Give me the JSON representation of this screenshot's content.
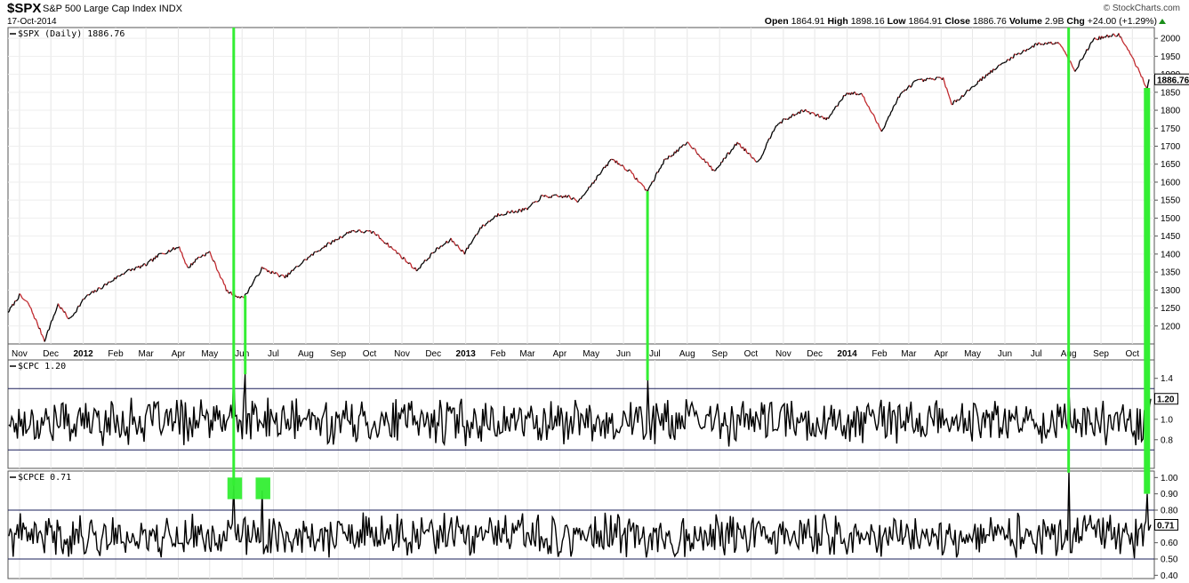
{
  "header": {
    "ticker": "$SPX",
    "name": "S&P 500 Large Cap Index",
    "exchange": "INDX",
    "date": "17-Oct-2014",
    "brand": "© StockCharts.com",
    "quote": {
      "open_label": "Open",
      "open": "1864.91",
      "high_label": "High",
      "high": "1898.16",
      "low_label": "Low",
      "low": "1864.91",
      "close_label": "Close",
      "close": "1886.76",
      "volume_label": "Volume",
      "volume": "2.9B",
      "chg_label": "Chg",
      "chg": "+24.00 (+1.29%)"
    }
  },
  "chart_data": [
    {
      "type": "line",
      "label": "$SPX (Daily) 1886.76",
      "last_value_label": "1886.76",
      "ylim": [
        1150,
        2030
      ],
      "yticks": [
        1200,
        1250,
        1300,
        1350,
        1400,
        1450,
        1500,
        1550,
        1600,
        1650,
        1700,
        1750,
        1800,
        1850,
        1900,
        1950,
        2000
      ],
      "line_color_up": "#000000",
      "line_color_down": "#c0282d",
      "x": [
        "2011-10-21",
        "2011-11-01",
        "2011-11-10",
        "2011-11-25",
        "2011-12-08",
        "2011-12-19",
        "2012-01-03",
        "2012-01-20",
        "2012-02-10",
        "2012-03-01",
        "2012-03-15",
        "2012-04-02",
        "2012-04-10",
        "2012-04-20",
        "2012-05-01",
        "2012-05-18",
        "2012-06-01",
        "2012-06-04",
        "2012-06-20",
        "2012-07-12",
        "2012-08-01",
        "2012-08-17",
        "2012-09-14",
        "2012-10-05",
        "2012-10-25",
        "2012-11-15",
        "2012-12-03",
        "2012-12-18",
        "2012-12-31",
        "2013-01-15",
        "2013-02-01",
        "2013-03-01",
        "2013-03-15",
        "2013-04-10",
        "2013-04-18",
        "2013-05-21",
        "2013-06-07",
        "2013-06-24",
        "2013-07-10",
        "2013-08-02",
        "2013-08-27",
        "2013-09-18",
        "2013-10-08",
        "2013-10-25",
        "2013-11-20",
        "2013-12-13",
        "2013-12-31",
        "2014-01-15",
        "2014-02-03",
        "2014-02-20",
        "2014-03-07",
        "2014-04-03",
        "2014-04-11",
        "2014-05-13",
        "2014-06-09",
        "2014-07-03",
        "2014-07-24",
        "2014-08-07",
        "2014-08-25",
        "2014-09-18",
        "2014-10-01",
        "2014-10-15",
        "2014-10-17"
      ],
      "values": [
        1238,
        1285,
        1260,
        1160,
        1260,
        1218,
        1280,
        1310,
        1350,
        1370,
        1400,
        1420,
        1360,
        1390,
        1405,
        1295,
        1278,
        1285,
        1360,
        1335,
        1385,
        1418,
        1465,
        1460,
        1410,
        1355,
        1410,
        1440,
        1403,
        1472,
        1510,
        1525,
        1560,
        1560,
        1545,
        1665,
        1630,
        1575,
        1660,
        1710,
        1630,
        1710,
        1655,
        1760,
        1800,
        1775,
        1848,
        1845,
        1742,
        1840,
        1880,
        1890,
        1815,
        1895,
        1950,
        1985,
        1988,
        1910,
        1998,
        2011,
        1946,
        1862,
        1886
      ]
    },
    {
      "type": "line",
      "label": "$CPC 1.20",
      "last_value_label": "1.20",
      "ylim": [
        0.52,
        1.58
      ],
      "yticks": [
        0.8,
        1.0,
        1.2,
        1.4
      ],
      "ytick_labels": [
        "0.8",
        "1.0",
        "1.2",
        "1.4"
      ],
      "ref_lines": [
        1.3,
        0.7
      ],
      "series_seed": 17,
      "x": [
        "2012-05-24",
        "2012-06-04",
        "2013-06-24",
        "2014-08-01",
        "2014-10-15"
      ],
      "values": [
        1.48,
        1.44,
        1.38,
        1.28,
        1.52
      ]
    },
    {
      "type": "line",
      "label": "$CPCE 0.71",
      "last_value_label": "0.71",
      "ylim": [
        0.38,
        1.04
      ],
      "yticks": [
        0.4,
        0.5,
        0.6,
        0.7,
        0.8,
        0.9,
        1.0
      ],
      "ytick_labels": [
        "0.40",
        "0.50",
        "0.60",
        "0.70",
        "0.80",
        "0.90",
        "1.00"
      ],
      "ref_lines": [
        0.8,
        0.5
      ],
      "series_seed": 41,
      "x": [
        "2012-05-24",
        "2012-06-20",
        "2014-08-01",
        "2014-10-15"
      ],
      "values": [
        0.95,
        0.92,
        1.03,
        0.9
      ]
    }
  ],
  "x_axis": {
    "start": "2011-10-21",
    "end": "2014-10-22",
    "months": [
      {
        "date": "2011-11-01",
        "label": "Nov",
        "bold": false
      },
      {
        "date": "2011-12-01",
        "label": "Dec",
        "bold": false
      },
      {
        "date": "2012-01-01",
        "label": "2012",
        "bold": true
      },
      {
        "date": "2012-02-01",
        "label": "Feb",
        "bold": false
      },
      {
        "date": "2012-03-01",
        "label": "Mar",
        "bold": false
      },
      {
        "date": "2012-04-01",
        "label": "Apr",
        "bold": false
      },
      {
        "date": "2012-05-01",
        "label": "May",
        "bold": false
      },
      {
        "date": "2012-06-01",
        "label": "Jun",
        "bold": false
      },
      {
        "date": "2012-07-01",
        "label": "Jul",
        "bold": false
      },
      {
        "date": "2012-08-01",
        "label": "Aug",
        "bold": false
      },
      {
        "date": "2012-09-01",
        "label": "Sep",
        "bold": false
      },
      {
        "date": "2012-10-01",
        "label": "Oct",
        "bold": false
      },
      {
        "date": "2012-11-01",
        "label": "Nov",
        "bold": false
      },
      {
        "date": "2012-12-01",
        "label": "Dec",
        "bold": false
      },
      {
        "date": "2013-01-01",
        "label": "2013",
        "bold": true
      },
      {
        "date": "2013-02-01",
        "label": "Feb",
        "bold": false
      },
      {
        "date": "2013-03-01",
        "label": "Mar",
        "bold": false
      },
      {
        "date": "2013-04-01",
        "label": "Apr",
        "bold": false
      },
      {
        "date": "2013-05-01",
        "label": "May",
        "bold": false
      },
      {
        "date": "2013-06-01",
        "label": "Jun",
        "bold": false
      },
      {
        "date": "2013-07-01",
        "label": "Jul",
        "bold": false
      },
      {
        "date": "2013-08-01",
        "label": "Aug",
        "bold": false
      },
      {
        "date": "2013-09-01",
        "label": "Sep",
        "bold": false
      },
      {
        "date": "2013-10-01",
        "label": "Oct",
        "bold": false
      },
      {
        "date": "2013-11-01",
        "label": "Nov",
        "bold": false
      },
      {
        "date": "2013-12-01",
        "label": "Dec",
        "bold": false
      },
      {
        "date": "2014-01-01",
        "label": "2014",
        "bold": true
      },
      {
        "date": "2014-02-01",
        "label": "Feb",
        "bold": false
      },
      {
        "date": "2014-03-01",
        "label": "Mar",
        "bold": false
      },
      {
        "date": "2014-04-01",
        "label": "Apr",
        "bold": false
      },
      {
        "date": "2014-05-01",
        "label": "May",
        "bold": false
      },
      {
        "date": "2014-06-01",
        "label": "Jun",
        "bold": false
      },
      {
        "date": "2014-07-01",
        "label": "Jul",
        "bold": false
      },
      {
        "date": "2014-08-01",
        "label": "Aug",
        "bold": false
      },
      {
        "date": "2014-09-01",
        "label": "Sep",
        "bold": false
      },
      {
        "date": "2014-10-01",
        "label": "Oct",
        "bold": false
      }
    ]
  },
  "annotations": {
    "color": "#33ee33",
    "vertical_lines": [
      {
        "date": "2012-05-24",
        "wide": false
      },
      {
        "date": "2012-06-04",
        "wide": false
      },
      {
        "date": "2013-06-24",
        "wide": false
      },
      {
        "date": "2014-08-01",
        "wide": false
      },
      {
        "date": "2014-10-15",
        "wide": true
      }
    ],
    "boxes": [
      {
        "start": "2012-05-18",
        "end": "2012-06-01"
      },
      {
        "start": "2012-06-14",
        "end": "2012-06-28"
      }
    ]
  }
}
